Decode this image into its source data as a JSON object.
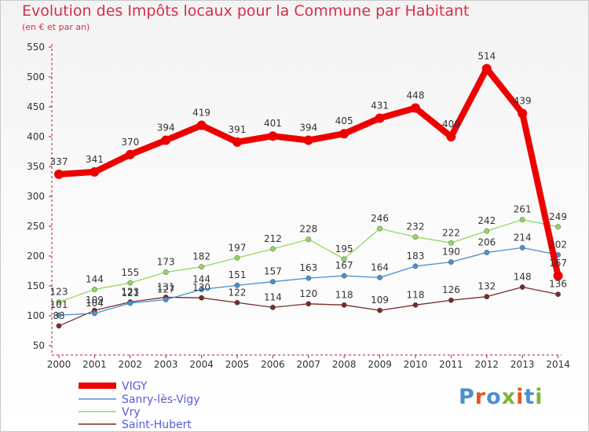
{
  "chart_data": {
    "type": "line",
    "title": "Evolution des Impôts locaux pour la Commune par Habitant",
    "subtitle": "(en € et par an)",
    "x": [
      "2000",
      "2001",
      "2002",
      "2003",
      "2004",
      "2005",
      "2006",
      "2007",
      "2008",
      "2009",
      "2010",
      "2011",
      "2012",
      "2013",
      "2014"
    ],
    "ylim": [
      50,
      550
    ],
    "yticks": [
      50,
      100,
      150,
      200,
      250,
      300,
      350,
      400,
      450,
      500,
      550
    ],
    "grid": false,
    "legend_position": "bottom-left",
    "series": [
      {
        "name": "VIGY",
        "color": "#ee0000",
        "values": [
          337,
          341,
          370,
          394,
          419,
          391,
          401,
          394,
          405,
          431,
          448,
          400,
          514,
          439,
          167
        ],
        "labels": [
          "337",
          "341",
          "370",
          "394",
          "419",
          "391",
          "401",
          "394",
          "405",
          "431",
          "448",
          "400",
          "514",
          "439",
          "167"
        ]
      },
      {
        "name": "Sanry-lès-Vigy",
        "color": "#4a90d0",
        "values": [
          101,
          104,
          121,
          127,
          144,
          151,
          157,
          163,
          167,
          164,
          183,
          190,
          206,
          214,
          202
        ],
        "labels": [
          "101",
          "104",
          "121",
          "127",
          "144",
          "151",
          "157",
          "163",
          "167",
          "164",
          "183",
          "190",
          "206",
          "214",
          "202"
        ]
      },
      {
        "name": "Vry",
        "color": "#90d860",
        "values": [
          123,
          144,
          155,
          173,
          182,
          197,
          212,
          228,
          195,
          246,
          232,
          222,
          242,
          261,
          249
        ],
        "labels": [
          "123",
          "144",
          "155",
          "173",
          "182",
          "197",
          "212",
          "228",
          "195",
          "246",
          "232",
          "222",
          "242",
          "261",
          "249"
        ]
      },
      {
        "name": "Saint-Hubert",
        "color": "#7a2a2a",
        "values": [
          83,
          109,
          123,
          131,
          130,
          122,
          114,
          120,
          118,
          109,
          118,
          126,
          132,
          148,
          136
        ],
        "labels": [
          "83",
          "109",
          "123",
          "131",
          "130",
          "122",
          "114",
          "120",
          "118",
          "109",
          "118",
          "126",
          "132",
          "148",
          "136"
        ]
      }
    ]
  },
  "logo": {
    "text": "Proxiti",
    "colors": [
      "#4a90d0",
      "#e05a1e",
      "#4a90d0",
      "#7ab63a",
      "#e05a1e",
      "#4a90d0",
      "#7ab63a"
    ]
  }
}
